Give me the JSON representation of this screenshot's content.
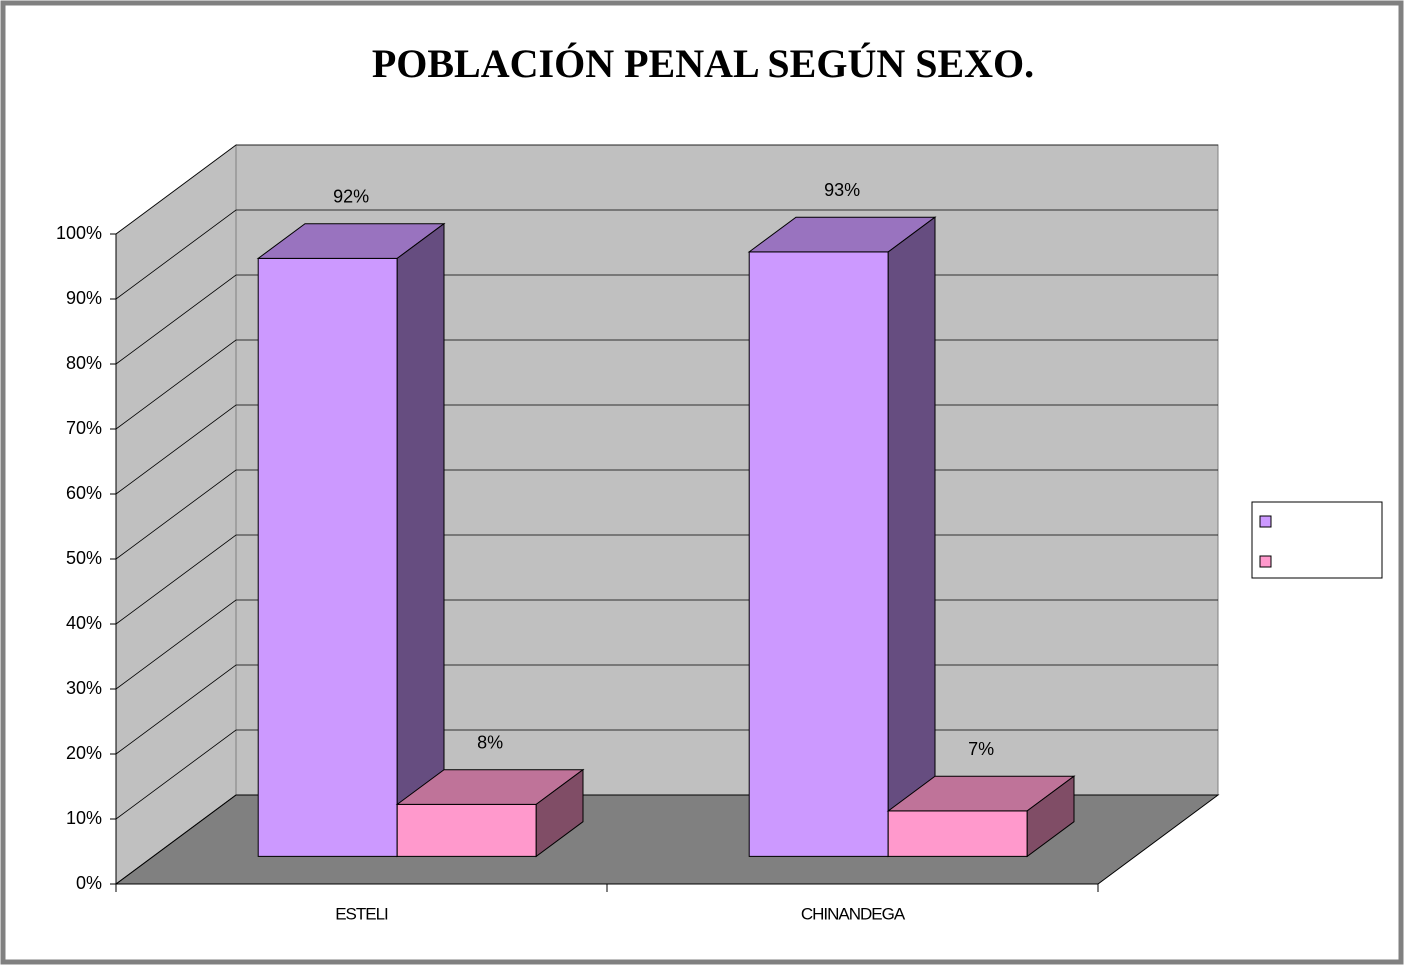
{
  "chart_data": {
    "type": "bar3d",
    "title": "POBLACIÓN PENAL  SEGÚN SEXO.",
    "categories": [
      "ESTELI",
      "CHINANDEGA"
    ],
    "series": [
      {
        "color": "#cc99ff",
        "values": [
          92,
          93
        ],
        "value_labels": [
          "92%",
          "93%"
        ]
      },
      {
        "color": "#ff99cc",
        "values": [
          8,
          7
        ],
        "value_labels": [
          "8%",
          "7%"
        ]
      }
    ],
    "ylim": [
      0,
      100
    ],
    "yticks": [
      {
        "value": 0,
        "label": "0%"
      },
      {
        "value": 10,
        "label": "10%"
      },
      {
        "value": 20,
        "label": "20%"
      },
      {
        "value": 30,
        "label": "30%"
      },
      {
        "value": 40,
        "label": "40%"
      },
      {
        "value": 50,
        "label": "50%"
      },
      {
        "value": 60,
        "label": "60%"
      },
      {
        "value": 70,
        "label": "70%"
      },
      {
        "value": 80,
        "label": "80%"
      },
      {
        "value": 90,
        "label": "90%"
      },
      {
        "value": 100,
        "label": "100%"
      }
    ],
    "grid": true
  }
}
